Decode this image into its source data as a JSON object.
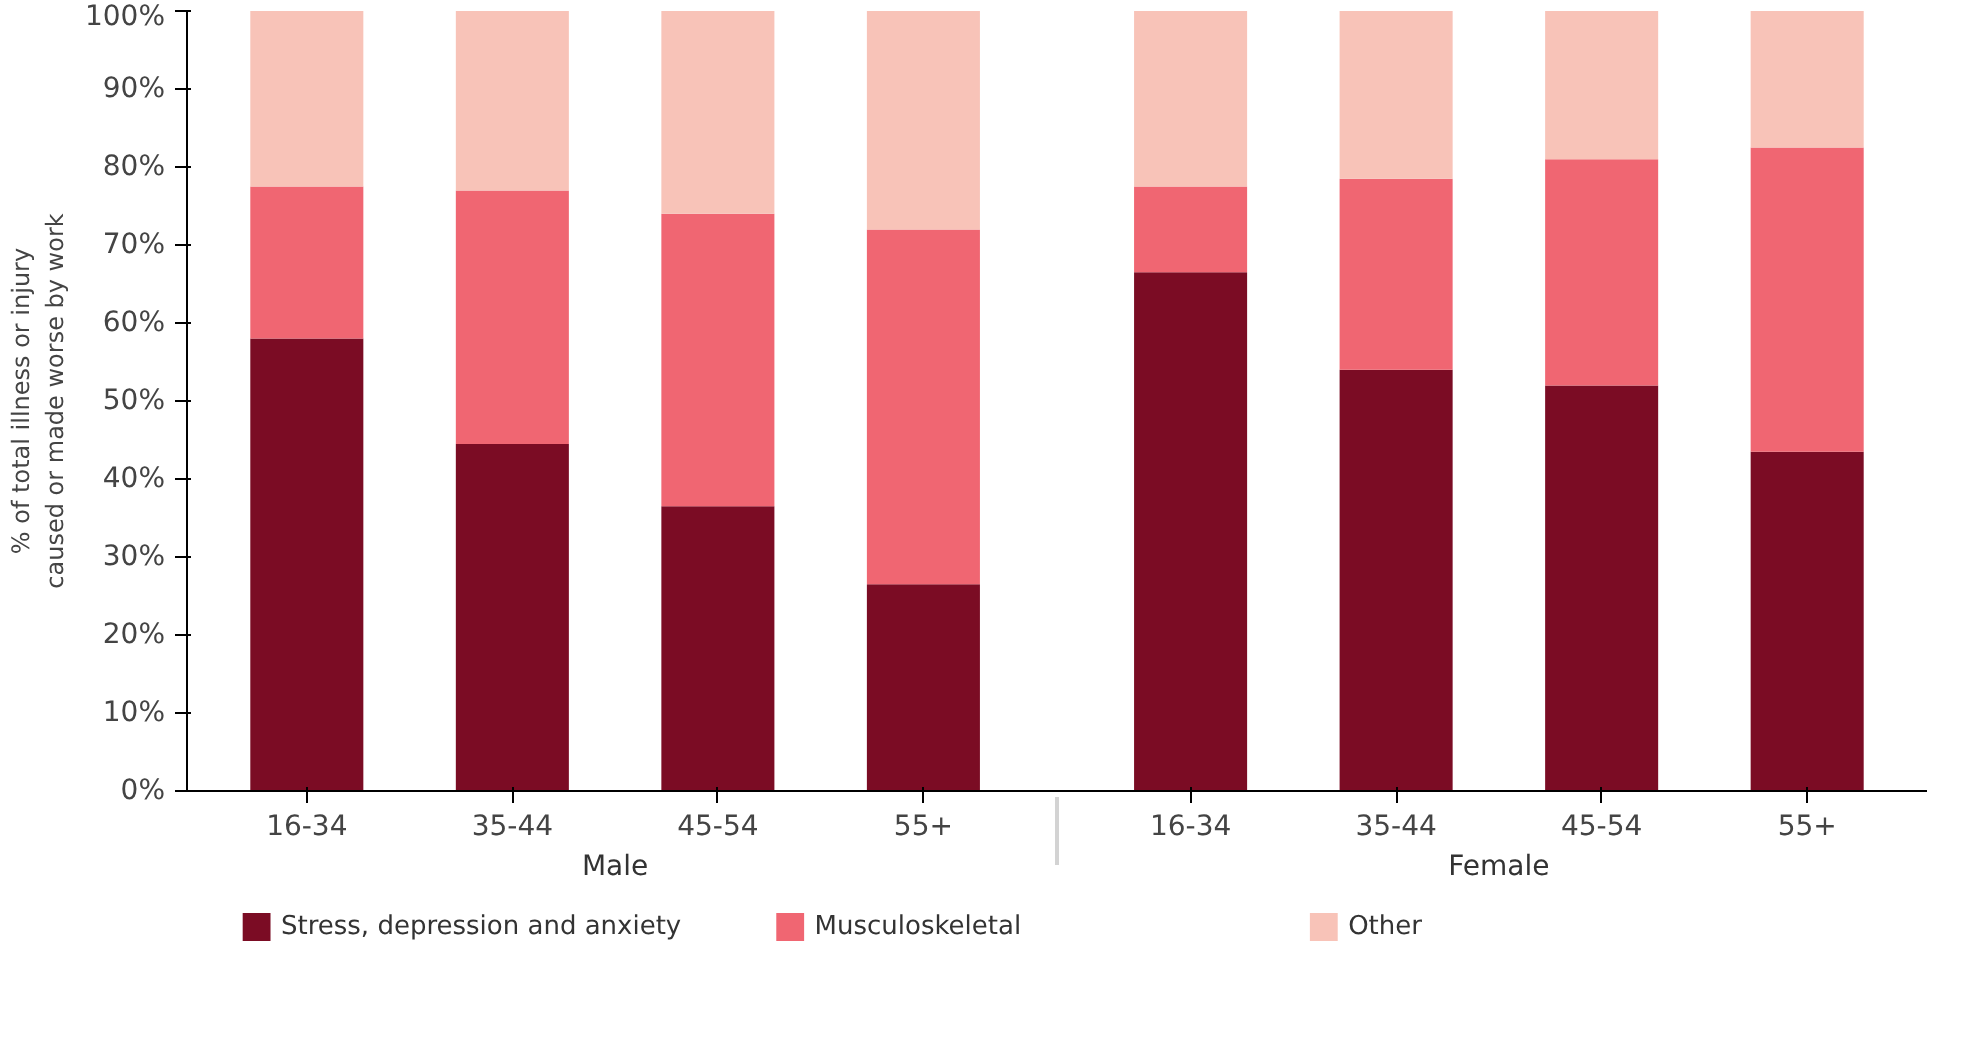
{
  "chart_data": {
    "type": "bar",
    "stacked": true,
    "ylabel": "% of total illness or injury caused or made worse by work",
    "categories": [
      "16-34",
      "35-44",
      "45-54",
      "55+",
      "16-34",
      "35-44",
      "45-54",
      "55+"
    ],
    "annotations": [
      "Male",
      "Female"
    ],
    "series": [
      {
        "name": "Stress, depression and anxiety",
        "color": "#7b0c24",
        "values": [
          58,
          44.5,
          36.5,
          26.5,
          66.5,
          54,
          52,
          43.5
        ]
      },
      {
        "name": "Musculoskeletal",
        "color": "#f06672",
        "values": [
          19.5,
          32.5,
          37.5,
          45.5,
          11,
          24.5,
          29,
          39
        ]
      },
      {
        "name": "Other",
        "color": "#f8c3b8",
        "values": [
          22.5,
          23,
          26,
          28,
          22.5,
          21.5,
          19,
          17.5
        ]
      }
    ],
    "ylim": [
      0,
      100
    ],
    "yticks": [
      {
        "value": 0,
        "label": "0%"
      },
      {
        "value": 10,
        "label": "10%"
      },
      {
        "value": 20,
        "label": "20%"
      },
      {
        "value": 30,
        "label": "30%"
      },
      {
        "value": 40,
        "label": "40%"
      },
      {
        "value": 50,
        "label": "50%"
      },
      {
        "value": 60,
        "label": "60%"
      },
      {
        "value": 70,
        "label": "70%"
      },
      {
        "value": 80,
        "label": "80%"
      },
      {
        "value": 90,
        "label": "90%"
      },
      {
        "value": 100,
        "label": "100%"
      }
    ],
    "legend": "bottom",
    "grid": false
  }
}
